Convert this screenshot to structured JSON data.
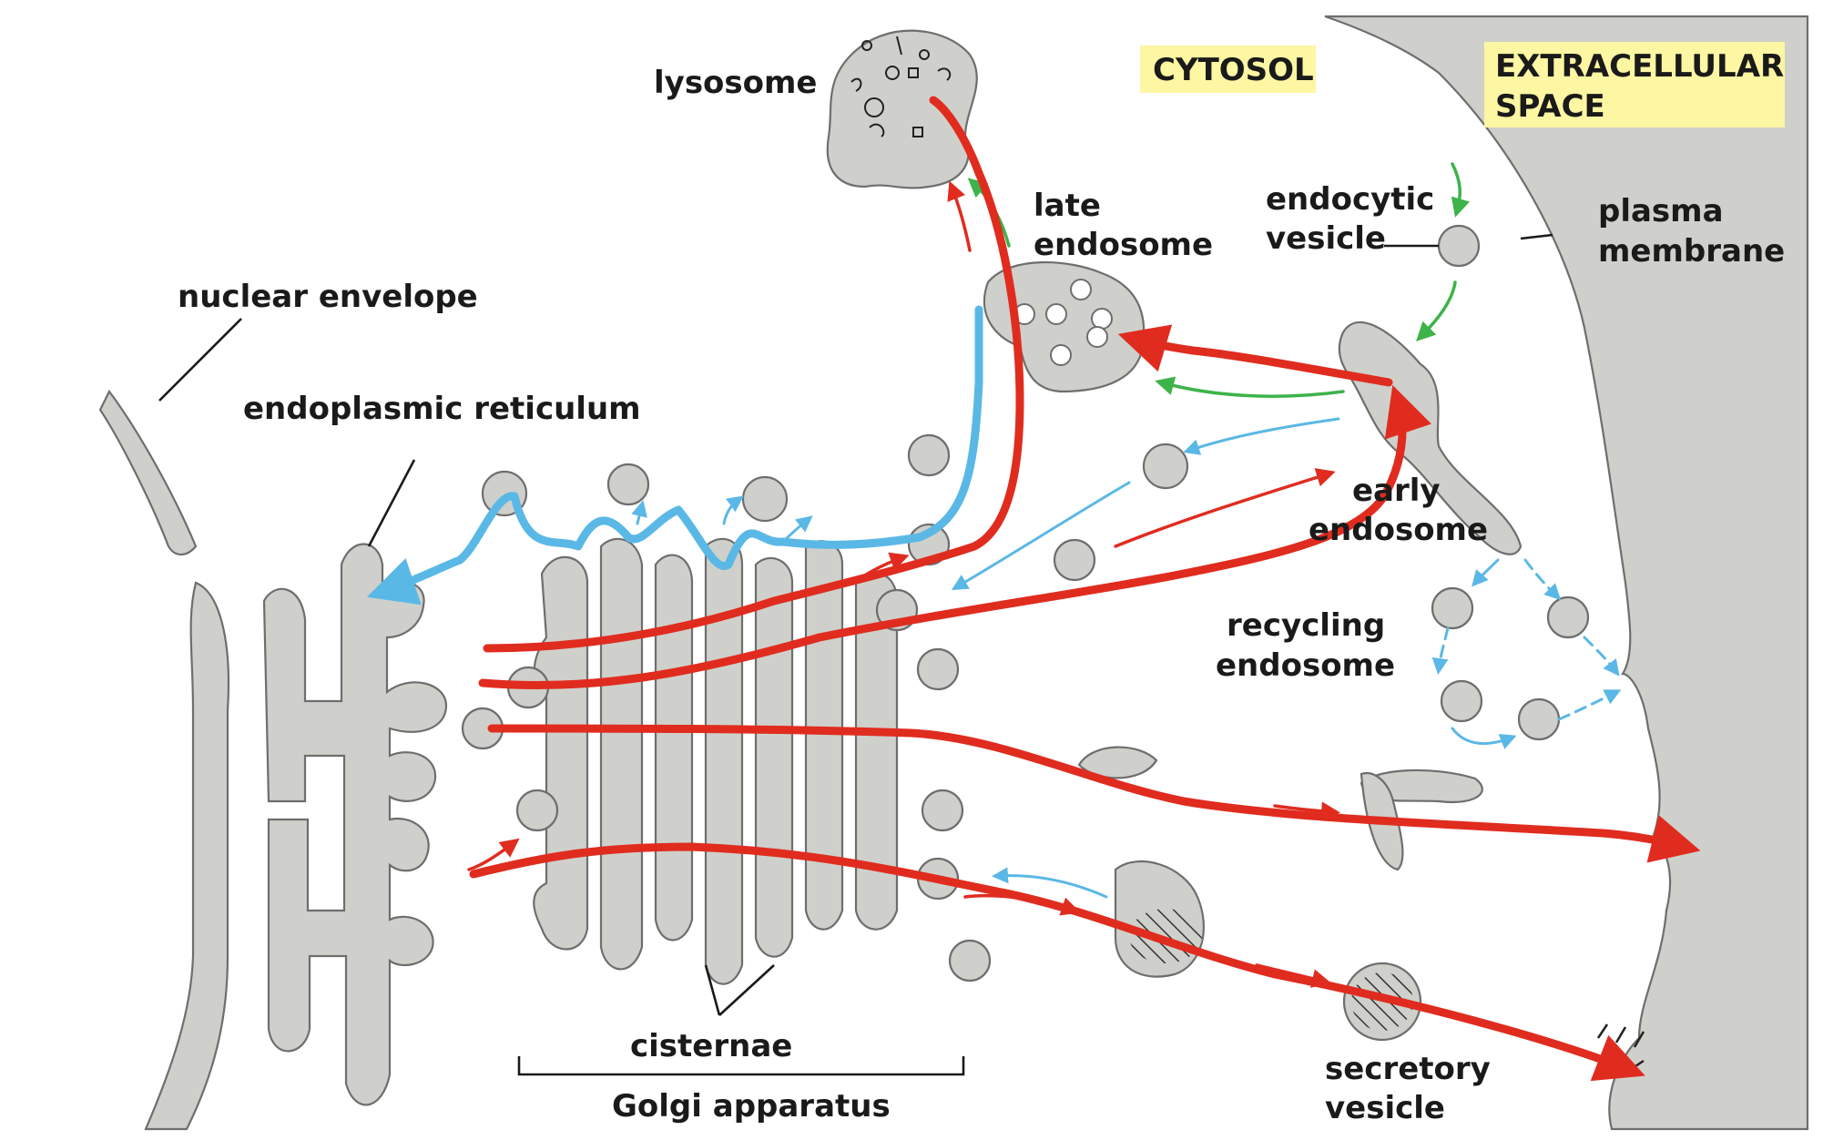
{
  "labels": {
    "lysosome": "lysosome",
    "late_endosome_1": "late",
    "late_endosome_2": "endosome",
    "endocytic_1": "endocytic",
    "endocytic_2": "vesicle",
    "plasma_1": "plasma",
    "plasma_2": "membrane",
    "nuclear_envelope": "nuclear envelope",
    "er": "endoplasmic reticulum",
    "early_1": "early",
    "early_2": "endosome",
    "recycling_1": "recycling",
    "recycling_2": "endosome",
    "cisternae": "cisternae",
    "golgi": "Golgi apparatus",
    "secretory_1": "secretory",
    "secretory_2": "vesicle"
  },
  "regions": {
    "cytosol": "CYTOSOL",
    "extracellular_1": "EXTRACELLULAR",
    "extracellular_2": "SPACE"
  },
  "colors": {
    "membrane_fill": "#cfd0cb",
    "region_tag_bg": "#fdf6a3",
    "biosynthetic_secretory": "#e02c1f",
    "retrieval": "#5ab8e6",
    "endocytic": "#3db34a"
  }
}
